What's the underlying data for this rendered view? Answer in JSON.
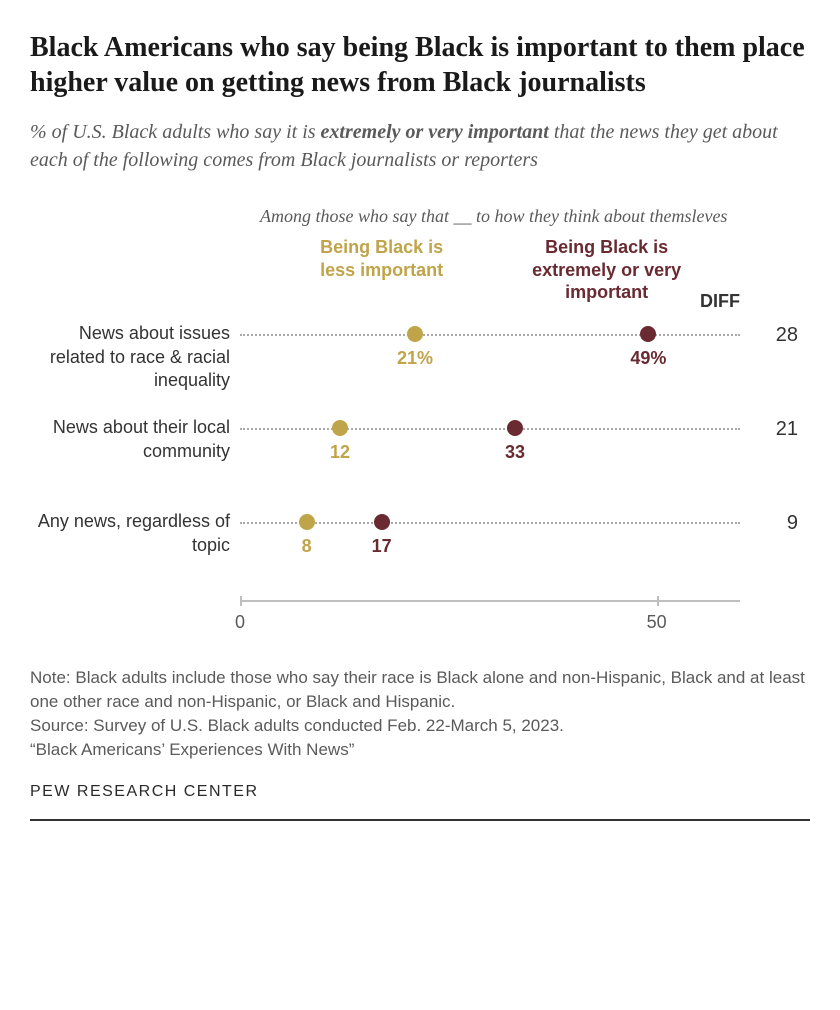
{
  "title": "Black Americans who say being Black is important to them place higher value on getting news from Black journalists",
  "subtitle_pre": "% of U.S. Black adults who say it is ",
  "subtitle_bold": "extremely or very important",
  "subtitle_post": " that the news they get about each of the following comes from Black journalists or reporters",
  "legend_top": "Among those who say that __ to how they think about themsleves",
  "legend_less": "Being Black is less important",
  "legend_more": "Being Black is extremely or very important",
  "diff_header": "DIFF",
  "chart": {
    "type": "dot-plot",
    "xlim": [
      0,
      60
    ],
    "ticks": [
      0,
      50
    ],
    "color_less": "#c0a44a",
    "color_more": "#6a2a32",
    "dotted_color": "#aaaaaa",
    "text_gray": "#5a5a5a",
    "label_fontsize": 18,
    "value_fontsize": 18,
    "rows": [
      {
        "label": "News about issues related to race & racial inequality",
        "less": 21,
        "less_label": "21%",
        "more": 49,
        "more_label": "49%",
        "diff": 28
      },
      {
        "label": "News about their local community",
        "less": 12,
        "less_label": "12",
        "more": 33,
        "more_label": "33",
        "diff": 21
      },
      {
        "label": "Any news, regardless of topic",
        "less": 8,
        "less_label": "8",
        "more": 17,
        "more_label": "17",
        "diff": 9
      }
    ]
  },
  "note": "Note: Black adults include those who say their race is Black alone and non-Hispanic, Black and at least one other race and non-Hispanic, or Black and Hispanic.",
  "source": "Source: Survey of U.S. Black adults conducted Feb. 22-March 5, 2023.",
  "quote": "“Black Americans’ Experiences With News”",
  "brand": "PEW RESEARCH CENTER"
}
